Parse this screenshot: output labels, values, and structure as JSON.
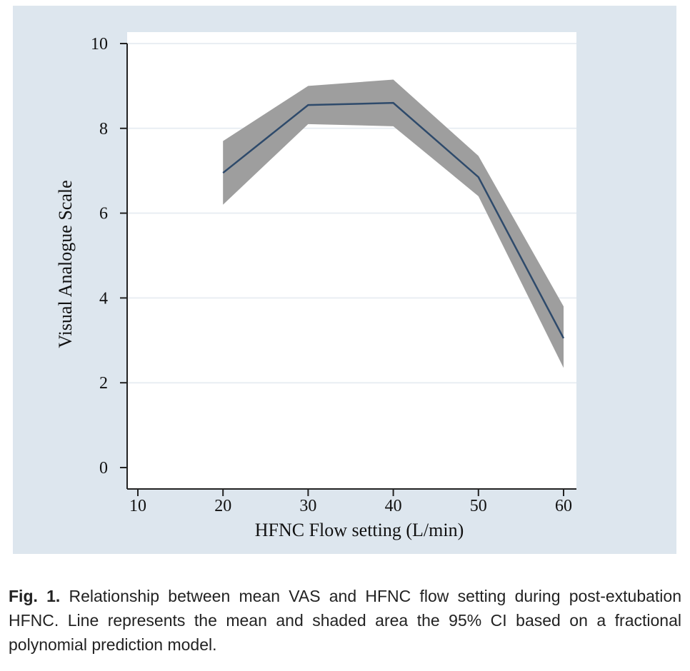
{
  "chart_data": {
    "type": "line",
    "xlabel": "HFNC Flow setting (L/min)",
    "ylabel": "Visual Analogue Scale",
    "xlim": [
      10,
      60
    ],
    "ylim": [
      0,
      10
    ],
    "x_ticks": [
      10,
      20,
      30,
      40,
      50,
      60
    ],
    "y_ticks": [
      0,
      2,
      4,
      6,
      8,
      10
    ],
    "grid": true,
    "series": [
      {
        "x": [
          20,
          30,
          40,
          50,
          60
        ],
        "mean": [
          6.95,
          8.55,
          8.6,
          6.85,
          3.05
        ],
        "ci_lower": [
          6.2,
          8.1,
          8.05,
          6.4,
          2.35
        ],
        "ci_upper": [
          7.7,
          9.0,
          9.15,
          7.35,
          3.8
        ]
      }
    ],
    "colors": {
      "line": "#2e4a6b",
      "band": "#9e9e9e",
      "background": "#dde6ee",
      "plot_area": "#ffffff",
      "grid": "#e9eef3"
    }
  },
  "caption": {
    "label": "Fig. 1.",
    "text": " Relationship between mean VAS and HFNC flow setting during post-extubation HFNC. Line represents the mean and shaded area the 95% CI based on a fractional polynomial prediction model."
  }
}
